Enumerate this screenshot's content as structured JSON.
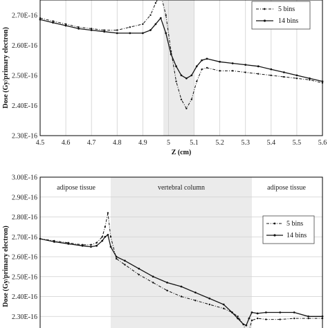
{
  "chart_data": [
    {
      "type": "line",
      "title": "",
      "xlabel": "Z (cm)",
      "ylabel": "Dose (Gy/primary electron)",
      "xlim": [
        4.5,
        5.6
      ],
      "ylim": [
        2.3e-16,
        2.75e-16
      ],
      "x_ticks": [
        4.5,
        4.6,
        4.7,
        4.8,
        4.9,
        5.0,
        5.1,
        5.2,
        5.3,
        5.4,
        5.5,
        5.6
      ],
      "x_tick_labels": [
        "4.5",
        "4.6",
        "4.7",
        "4.8",
        "4.9",
        "5",
        "5.1",
        "5.2",
        "5.3",
        "5.4",
        "5.5",
        "5.6"
      ],
      "y_ticks": [
        2.3e-16,
        2.4e-16,
        2.5e-16,
        2.6e-16,
        2.7e-16
      ],
      "y_tick_labels": [
        "2.30E-16",
        "2.40E-16",
        "2.50E-16",
        "2.60E-16",
        "2.70E-16"
      ],
      "grid": "vertical",
      "shaded_region": [
        4.98,
        5.1
      ],
      "legend": {
        "placement": "top-right"
      },
      "series": [
        {
          "name": "5 bins",
          "style": "dash-dot",
          "x": [
            4.5,
            4.55,
            4.6,
            4.65,
            4.7,
            4.75,
            4.8,
            4.85,
            4.9,
            4.93,
            4.95,
            4.97,
            4.99,
            5.01,
            5.03,
            5.05,
            5.07,
            5.09,
            5.11,
            5.13,
            5.15,
            5.2,
            5.25,
            5.3,
            5.35,
            5.4,
            5.45,
            5.5,
            5.55,
            5.6
          ],
          "y": [
            2.69e-16,
            2.68e-16,
            2.67e-16,
            2.66e-16,
            2.655e-16,
            2.65e-16,
            2.65e-16,
            2.66e-16,
            2.67e-16,
            2.7e-16,
            2.74e-16,
            2.77e-16,
            2.7e-16,
            2.58e-16,
            2.48e-16,
            2.42e-16,
            2.39e-16,
            2.42e-16,
            2.48e-16,
            2.52e-16,
            2.525e-16,
            2.515e-16,
            2.515e-16,
            2.51e-16,
            2.505e-16,
            2.5e-16,
            2.495e-16,
            2.49e-16,
            2.485e-16,
            2.475e-16
          ]
        },
        {
          "name": "14 bins",
          "style": "solid",
          "x": [
            4.5,
            4.55,
            4.6,
            4.65,
            4.7,
            4.75,
            4.8,
            4.85,
            4.9,
            4.93,
            4.95,
            4.97,
            4.99,
            5.01,
            5.03,
            5.05,
            5.07,
            5.09,
            5.11,
            5.13,
            5.15,
            5.2,
            5.25,
            5.3,
            5.35,
            5.4,
            5.45,
            5.5,
            5.55,
            5.6
          ],
          "y": [
            2.685e-16,
            2.675e-16,
            2.665e-16,
            2.655e-16,
            2.65e-16,
            2.645e-16,
            2.64e-16,
            2.64e-16,
            2.64e-16,
            2.65e-16,
            2.67e-16,
            2.69e-16,
            2.64e-16,
            2.57e-16,
            2.53e-16,
            2.5e-16,
            2.49e-16,
            2.5e-16,
            2.53e-16,
            2.55e-16,
            2.555e-16,
            2.545e-16,
            2.54e-16,
            2.535e-16,
            2.53e-16,
            2.52e-16,
            2.51e-16,
            2.5e-16,
            2.49e-16,
            2.48e-16
          ]
        }
      ]
    },
    {
      "type": "line",
      "title": "",
      "xlabel": "",
      "ylabel": "Dose (Gy/primary electron)",
      "xlim": [
        0,
        100
      ],
      "ylim": [
        2.2e-16,
        3e-16
      ],
      "y_ticks": [
        2.3e-16,
        2.4e-16,
        2.5e-16,
        2.6e-16,
        2.7e-16,
        2.8e-16,
        2.9e-16,
        3e-16
      ],
      "y_tick_labels": [
        "2.30E-16",
        "2.40E-16",
        "2.50E-16",
        "2.60E-16",
        "2.70E-16",
        "2.80E-16",
        "2.90E-16",
        "3.00E-16"
      ],
      "grid": "horizontal",
      "shaded_region": [
        25,
        75
      ],
      "legend": {
        "placement": "top-right"
      },
      "region_labels": [
        "adipose tissue",
        "vertebral column",
        "adipose tissue"
      ],
      "series": [
        {
          "name": "5 bins",
          "style": "dash-dot",
          "x": [
            0,
            5,
            10,
            15,
            18,
            20,
            22,
            23,
            24,
            25,
            27,
            30,
            35,
            40,
            45,
            50,
            55,
            60,
            65,
            68,
            70,
            72,
            73,
            74,
            75,
            77,
            80,
            85,
            90,
            95,
            100
          ],
          "y": [
            2.69e-16,
            2.68e-16,
            2.67e-16,
            2.66e-16,
            2.66e-16,
            2.67e-16,
            2.7e-16,
            2.75e-16,
            2.82e-16,
            2.7e-16,
            2.59e-16,
            2.56e-16,
            2.51e-16,
            2.47e-16,
            2.43e-16,
            2.4e-16,
            2.38e-16,
            2.36e-16,
            2.34e-16,
            2.32e-16,
            2.3e-16,
            2.26e-16,
            2.22e-16,
            2.23e-16,
            2.28e-16,
            2.29e-16,
            2.285e-16,
            2.285e-16,
            2.29e-16,
            2.29e-16,
            2.29e-16
          ]
        },
        {
          "name": "14 bins",
          "style": "solid",
          "x": [
            0,
            5,
            10,
            15,
            18,
            20,
            22,
            23,
            24,
            25,
            27,
            30,
            35,
            40,
            45,
            50,
            55,
            60,
            65,
            68,
            70,
            72,
            73,
            74,
            75,
            77,
            80,
            85,
            90,
            95,
            100
          ],
          "y": [
            2.69e-16,
            2.675e-16,
            2.665e-16,
            2.655e-16,
            2.65e-16,
            2.655e-16,
            2.68e-16,
            2.7e-16,
            2.71e-16,
            2.65e-16,
            2.6e-16,
            2.58e-16,
            2.54e-16,
            2.5e-16,
            2.47e-16,
            2.45e-16,
            2.42e-16,
            2.39e-16,
            2.36e-16,
            2.32e-16,
            2.29e-16,
            2.26e-16,
            2.255e-16,
            2.29e-16,
            2.32e-16,
            2.315e-16,
            2.32e-16,
            2.32e-16,
            2.32e-16,
            2.3e-16,
            2.3e-16
          ]
        }
      ]
    }
  ]
}
